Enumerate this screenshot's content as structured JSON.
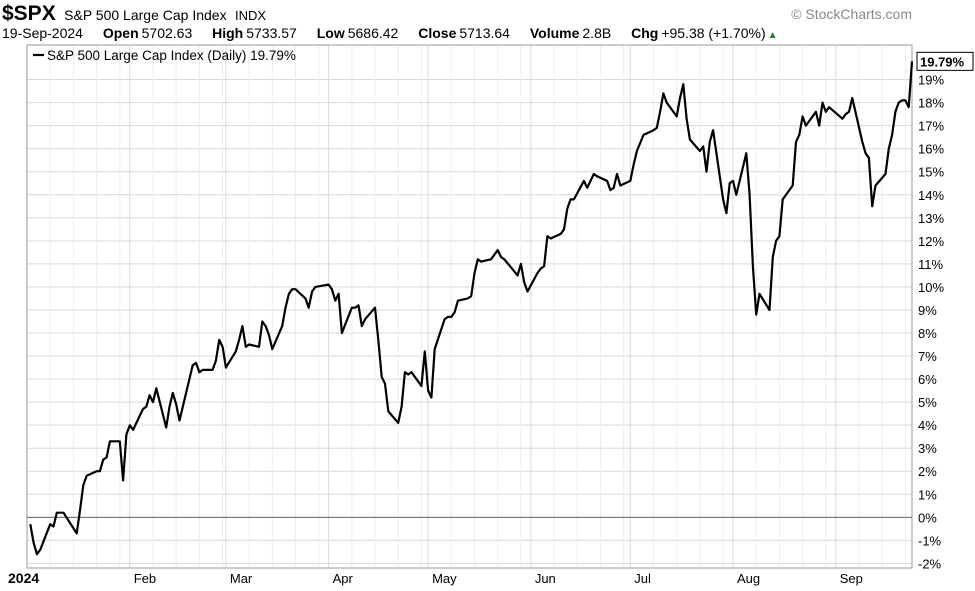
{
  "header": {
    "symbol": "$SPX",
    "name": "S&P 500 Large Cap Index",
    "exchange": "INDX",
    "brand": "© StockCharts.com",
    "date": "19-Sep-2024",
    "open_label": "Open",
    "open": "5702.63",
    "high_label": "High",
    "high": "5733.57",
    "low_label": "Low",
    "low": "5686.42",
    "close_label": "Close",
    "close": "5713.64",
    "volume_label": "Volume",
    "volume": "2.8B",
    "chg_label": "Chg",
    "chg": "+95.38 (+1.70%)"
  },
  "chart_data": {
    "type": "line",
    "legend": "S&P 500 Large Cap Index (Daily) 19.79%",
    "last_value_label": "19.79%",
    "ylim": [
      -2.2,
      20.5
    ],
    "y_ticks": [
      -2,
      -1,
      0,
      1,
      2,
      3,
      4,
      5,
      6,
      7,
      8,
      9,
      10,
      11,
      12,
      13,
      14,
      15,
      16,
      17,
      18,
      19
    ],
    "y_tick_labels": [
      "-2%",
      "-1%",
      "0%",
      "1%",
      "2%",
      "3%",
      "4%",
      "5%",
      "6%",
      "7%",
      "8%",
      "9%",
      "10%",
      "11%",
      "12%",
      "13%",
      "14%",
      "15%",
      "16%",
      "17%",
      "18%",
      "19%"
    ],
    "x_ticks": [
      "2024-01-01",
      "2024-02-01",
      "2024-03-01",
      "2024-04-01",
      "2024-05-01",
      "2024-06-01",
      "2024-07-01",
      "2024-08-01",
      "2024-09-01"
    ],
    "x_tick_labels": [
      "2024",
      "Feb",
      "Mar",
      "Apr",
      "May",
      "Jun",
      "Jul",
      "Aug",
      "Sep"
    ],
    "xlim": [
      "2024-01-01",
      "2024-09-24"
    ],
    "grid": true,
    "line_color": "#000000",
    "series": [
      {
        "name": "S&P 500 Large Cap Index",
        "points": [
          [
            "2024-01-02",
            -0.3
          ],
          [
            "2024-01-03",
            -1.1
          ],
          [
            "2024-01-04",
            -1.6
          ],
          [
            "2024-01-05",
            -1.4
          ],
          [
            "2024-01-08",
            -0.3
          ],
          [
            "2024-01-09",
            -0.4
          ],
          [
            "2024-01-10",
            0.2
          ],
          [
            "2024-01-11",
            0.2
          ],
          [
            "2024-01-12",
            0.2
          ],
          [
            "2024-01-16",
            -0.7
          ],
          [
            "2024-01-17",
            0.3
          ],
          [
            "2024-01-18",
            1.4
          ],
          [
            "2024-01-19",
            1.8
          ],
          [
            "2024-01-22",
            2.0
          ],
          [
            "2024-01-23",
            2.0
          ],
          [
            "2024-01-24",
            2.5
          ],
          [
            "2024-01-25",
            2.6
          ],
          [
            "2024-01-26",
            3.3
          ],
          [
            "2024-01-29",
            3.3
          ],
          [
            "2024-01-30",
            1.6
          ],
          [
            "2024-01-31",
            3.6
          ],
          [
            "2024-02-01",
            4.0
          ],
          [
            "2024-02-02",
            3.8
          ],
          [
            "2024-02-05",
            4.7
          ],
          [
            "2024-02-06",
            4.8
          ],
          [
            "2024-02-07",
            5.3
          ],
          [
            "2024-02-08",
            5.0
          ],
          [
            "2024-02-09",
            5.6
          ],
          [
            "2024-02-12",
            3.9
          ],
          [
            "2024-02-13",
            4.8
          ],
          [
            "2024-02-14",
            5.4
          ],
          [
            "2024-02-15",
            4.9
          ],
          [
            "2024-02-16",
            4.2
          ],
          [
            "2024-02-20",
            6.6
          ],
          [
            "2024-02-21",
            6.7
          ],
          [
            "2024-02-22",
            6.3
          ],
          [
            "2024-02-23",
            6.4
          ],
          [
            "2024-02-26",
            6.4
          ],
          [
            "2024-02-27",
            6.8
          ],
          [
            "2024-02-28",
            7.7
          ],
          [
            "2024-02-29",
            7.4
          ],
          [
            "2024-03-01",
            6.5
          ],
          [
            "2024-03-04",
            7.2
          ],
          [
            "2024-03-05",
            7.7
          ],
          [
            "2024-03-06",
            8.3
          ],
          [
            "2024-03-07",
            7.4
          ],
          [
            "2024-03-08",
            7.5
          ],
          [
            "2024-03-11",
            7.4
          ],
          [
            "2024-03-12",
            8.5
          ],
          [
            "2024-03-13",
            8.3
          ],
          [
            "2024-03-14",
            7.9
          ],
          [
            "2024-03-15",
            7.3
          ],
          [
            "2024-03-18",
            8.3
          ],
          [
            "2024-03-19",
            9.1
          ],
          [
            "2024-03-20",
            9.7
          ],
          [
            "2024-03-21",
            9.9
          ],
          [
            "2024-03-22",
            9.9
          ],
          [
            "2024-03-25",
            9.5
          ],
          [
            "2024-03-26",
            9.1
          ],
          [
            "2024-03-27",
            9.8
          ],
          [
            "2024-03-28",
            10.0
          ],
          [
            "2024-04-01",
            10.1
          ],
          [
            "2024-04-02",
            9.9
          ],
          [
            "2024-04-03",
            9.4
          ],
          [
            "2024-04-04",
            9.7
          ],
          [
            "2024-04-05",
            8.0
          ],
          [
            "2024-04-08",
            9.1
          ],
          [
            "2024-04-09",
            9.1
          ],
          [
            "2024-04-10",
            9.2
          ],
          [
            "2024-04-11",
            8.3
          ],
          [
            "2024-04-12",
            8.6
          ],
          [
            "2024-04-15",
            9.1
          ],
          [
            "2024-04-16",
            7.7
          ],
          [
            "2024-04-17",
            6.1
          ],
          [
            "2024-04-18",
            5.8
          ],
          [
            "2024-04-19",
            4.6
          ],
          [
            "2024-04-22",
            4.1
          ],
          [
            "2024-04-23",
            4.8
          ],
          [
            "2024-04-24",
            6.3
          ],
          [
            "2024-04-25",
            6.2
          ],
          [
            "2024-04-26",
            6.3
          ],
          [
            "2024-04-29",
            5.7
          ],
          [
            "2024-04-30",
            7.2
          ],
          [
            "2024-05-01",
            5.5
          ],
          [
            "2024-05-02",
            5.2
          ],
          [
            "2024-05-03",
            7.3
          ],
          [
            "2024-05-06",
            8.6
          ],
          [
            "2024-05-07",
            8.7
          ],
          [
            "2024-05-08",
            8.7
          ],
          [
            "2024-05-09",
            8.9
          ],
          [
            "2024-05-10",
            9.4
          ],
          [
            "2024-05-13",
            9.5
          ],
          [
            "2024-05-14",
            9.6
          ],
          [
            "2024-05-15",
            10.6
          ],
          [
            "2024-05-16",
            11.2
          ],
          [
            "2024-05-17",
            11.1
          ],
          [
            "2024-05-20",
            11.2
          ],
          [
            "2024-05-21",
            11.4
          ],
          [
            "2024-05-22",
            11.6
          ],
          [
            "2024-05-23",
            11.3
          ],
          [
            "2024-05-24",
            11.2
          ],
          [
            "2024-05-28",
            10.5
          ],
          [
            "2024-05-29",
            11.0
          ],
          [
            "2024-05-30",
            10.2
          ],
          [
            "2024-05-31",
            9.8
          ],
          [
            "2024-06-03",
            10.6
          ],
          [
            "2024-06-04",
            10.8
          ],
          [
            "2024-06-05",
            10.9
          ],
          [
            "2024-06-06",
            12.2
          ],
          [
            "2024-06-07",
            12.1
          ],
          [
            "2024-06-10",
            12.3
          ],
          [
            "2024-06-11",
            12.5
          ],
          [
            "2024-06-12",
            13.4
          ],
          [
            "2024-06-13",
            13.8
          ],
          [
            "2024-06-14",
            13.8
          ],
          [
            "2024-06-17",
            14.6
          ],
          [
            "2024-06-18",
            14.3
          ],
          [
            "2024-06-20",
            14.9
          ],
          [
            "2024-06-21",
            14.8
          ],
          [
            "2024-06-24",
            14.6
          ],
          [
            "2024-06-25",
            14.2
          ],
          [
            "2024-06-26",
            14.3
          ],
          [
            "2024-06-27",
            14.9
          ],
          [
            "2024-06-28",
            14.4
          ],
          [
            "2024-07-01",
            14.6
          ],
          [
            "2024-07-02",
            15.3
          ],
          [
            "2024-07-03",
            15.9
          ],
          [
            "2024-07-05",
            16.6
          ],
          [
            "2024-07-08",
            16.8
          ],
          [
            "2024-07-09",
            16.9
          ],
          [
            "2024-07-10",
            17.6
          ],
          [
            "2024-07-11",
            18.4
          ],
          [
            "2024-07-12",
            18.0
          ],
          [
            "2024-07-15",
            17.4
          ],
          [
            "2024-07-16",
            18.2
          ],
          [
            "2024-07-17",
            18.8
          ],
          [
            "2024-07-18",
            17.3
          ],
          [
            "2024-07-19",
            16.4
          ],
          [
            "2024-07-22",
            15.9
          ],
          [
            "2024-07-23",
            16.1
          ],
          [
            "2024-07-24",
            15.0
          ],
          [
            "2024-07-25",
            16.3
          ],
          [
            "2024-07-26",
            16.8
          ],
          [
            "2024-07-29",
            13.8
          ],
          [
            "2024-07-30",
            13.2
          ],
          [
            "2024-07-31",
            14.5
          ],
          [
            "2024-08-01",
            14.6
          ],
          [
            "2024-08-02",
            14.0
          ],
          [
            "2024-08-05",
            15.8
          ],
          [
            "2024-08-06",
            14.0
          ],
          [
            "2024-08-07",
            10.9
          ],
          [
            "2024-08-08",
            8.8
          ],
          [
            "2024-08-09",
            9.7
          ],
          [
            "2024-08-12",
            9.0
          ],
          [
            "2024-08-13",
            11.3
          ],
          [
            "2024-08-14",
            12.0
          ],
          [
            "2024-08-15",
            12.2
          ],
          [
            "2024-08-16",
            13.8
          ],
          [
            "2024-08-19",
            14.4
          ],
          [
            "2024-08-20",
            16.3
          ],
          [
            "2024-08-21",
            16.6
          ],
          [
            "2024-08-22",
            17.4
          ],
          [
            "2024-08-23",
            17.0
          ],
          [
            "2024-08-26",
            17.6
          ],
          [
            "2024-08-27",
            17.0
          ],
          [
            "2024-08-28",
            18.0
          ],
          [
            "2024-08-29",
            17.6
          ],
          [
            "2024-08-30",
            17.8
          ],
          [
            "2024-09-03",
            17.3
          ],
          [
            "2024-09-04",
            17.5
          ],
          [
            "2024-09-05",
            17.6
          ],
          [
            "2024-09-06",
            18.2
          ],
          [
            "2024-09-09",
            16.3
          ],
          [
            "2024-09-10",
            15.8
          ],
          [
            "2024-09-11",
            15.6
          ],
          [
            "2024-09-12",
            13.5
          ],
          [
            "2024-09-13",
            14.4
          ],
          [
            "2024-09-16",
            14.9
          ],
          [
            "2024-09-17",
            16.0
          ],
          [
            "2024-09-18",
            16.6
          ],
          [
            "2024-09-19",
            17.6
          ],
          [
            "2024-09-20",
            18.0
          ],
          [
            "2024-09-21",
            18.1
          ],
          [
            "2024-09-22",
            18.1
          ],
          [
            "2024-09-23",
            17.8
          ],
          [
            "2024-09-24",
            19.79
          ]
        ]
      }
    ]
  }
}
